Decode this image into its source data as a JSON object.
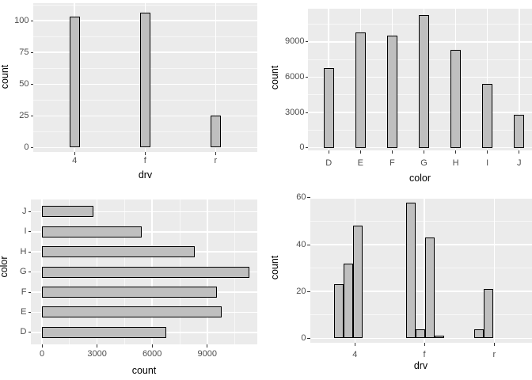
{
  "figure": {
    "description": "2x2 grid of ggplot-style gray bar charts on white background",
    "colors": {
      "panel_background": "#ebebeb",
      "grid_line": "#ffffff",
      "bar_fill": "#bfbfbf",
      "bar_stroke": "#000000",
      "tick_label": "#4d4d4d",
      "axis_title": "#000000",
      "tick_mark": "#333333"
    }
  },
  "chart_data": [
    {
      "type": "bar",
      "position": "top-left",
      "xlabel": "drv",
      "ylabel": "count",
      "categories": [
        "4",
        "f",
        "r"
      ],
      "values": [
        103,
        106,
        25
      ],
      "yticks": [
        0,
        25,
        50,
        75,
        100
      ],
      "ytick_labels": [
        "0",
        "25",
        "50",
        "75",
        "100"
      ],
      "yminor": [
        12.5,
        37.5,
        62.5,
        87.5,
        112.5
      ],
      "ylim": [
        0,
        113
      ],
      "grid": "major+minor white on gray",
      "legend": "none"
    },
    {
      "type": "bar",
      "position": "top-right",
      "xlabel": "color",
      "ylabel": "count",
      "categories": [
        "D",
        "E",
        "F",
        "G",
        "H",
        "I",
        "J"
      ],
      "values": [
        6775,
        9797,
        9542,
        11292,
        8304,
        5422,
        2808
      ],
      "yticks": [
        0,
        3000,
        6000,
        9000
      ],
      "ytick_labels": [
        "0",
        "3000",
        "6000",
        "9000"
      ],
      "yminor": [
        1500,
        4500,
        7500,
        10500
      ],
      "ylim": [
        0,
        11860
      ],
      "grid": "major+minor white on gray",
      "legend": "none"
    },
    {
      "type": "bar-horizontal",
      "position": "bottom-left",
      "xlabel": "count",
      "ylabel": "color",
      "categories": [
        "D",
        "E",
        "F",
        "G",
        "H",
        "I",
        "J"
      ],
      "values": [
        6775,
        9797,
        9542,
        11292,
        8304,
        5422,
        2808
      ],
      "category_order_top_to_bottom": [
        "J",
        "I",
        "H",
        "G",
        "F",
        "E",
        "D"
      ],
      "xticks": [
        0,
        3000,
        6000,
        9000
      ],
      "xtick_labels": [
        "0",
        "3000",
        "6000",
        "9000"
      ],
      "xminor": [
        1500,
        4500,
        7500,
        10500
      ],
      "xlim": [
        0,
        11860
      ],
      "grid": "major+minor white on gray",
      "legend": "none"
    },
    {
      "type": "bar-dodged",
      "position": "bottom-right",
      "xlabel": "drv",
      "ylabel": "count",
      "categories": [
        "4",
        "f",
        "r"
      ],
      "group_values_by_category": [
        [
          23,
          32,
          48
        ],
        [
          58,
          4,
          43,
          1
        ],
        [
          4,
          21
        ]
      ],
      "yticks": [
        0,
        20,
        40,
        60
      ],
      "ytick_labels": [
        "0",
        "20",
        "40",
        "60"
      ],
      "yminor": [
        10,
        30,
        50
      ],
      "ylim": [
        0,
        61
      ],
      "grid": "major+minor white on gray",
      "legend": "none"
    }
  ]
}
